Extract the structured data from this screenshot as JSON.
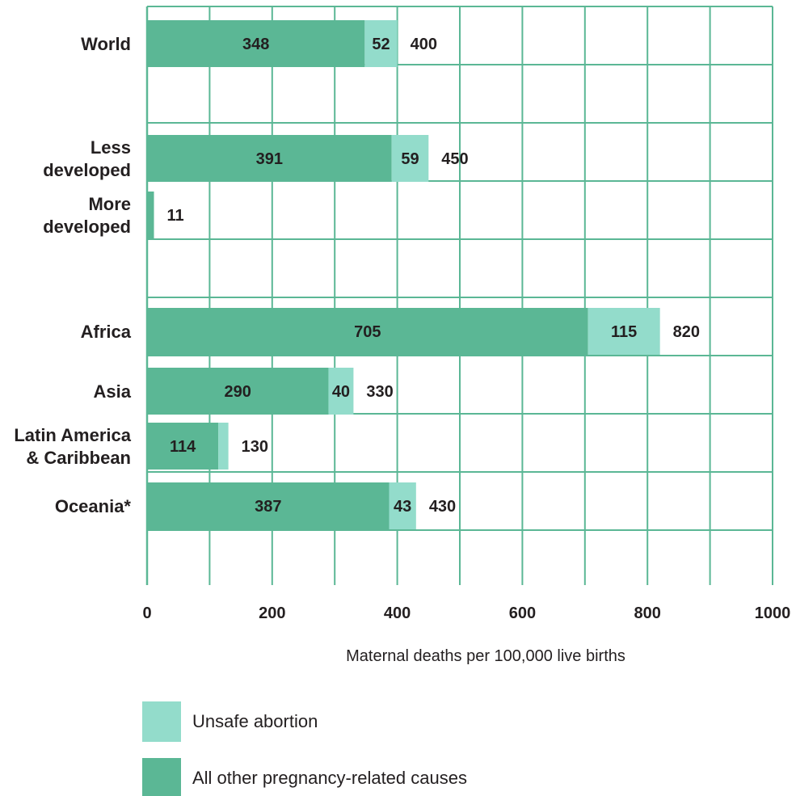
{
  "chart_data": {
    "type": "bar",
    "orientation": "horizontal",
    "stacked": true,
    "categories": [
      "World",
      "Less developed",
      "More developed",
      "Africa",
      "Asia",
      "Latin America & Caribbean",
      "Oceania*"
    ],
    "category_lines": [
      [
        "World"
      ],
      [
        "Less",
        "developed"
      ],
      [
        "More",
        "developed"
      ],
      [
        "Africa"
      ],
      [
        "Asia"
      ],
      [
        "Latin America",
        "& Caribbean"
      ],
      [
        "Oceania*"
      ]
    ],
    "series": [
      {
        "name": "All other pregnancy-related causes",
        "color": "#5bb795",
        "values": [
          348,
          391,
          11,
          705,
          290,
          114,
          387
        ],
        "labels": [
          "348",
          "391",
          "",
          "705",
          "290",
          "114",
          "387"
        ]
      },
      {
        "name": "Unsafe abortion",
        "color": "#93dccb",
        "values": [
          52,
          59,
          0,
          115,
          40,
          16,
          43
        ],
        "labels": [
          "52",
          "59",
          "",
          "115",
          "40",
          "",
          "43"
        ]
      }
    ],
    "totals": [
      400,
      450,
      11,
      820,
      330,
      130,
      430
    ],
    "xlabel": "Maternal deaths per 100,000 live births",
    "xlim": [
      0,
      1000
    ],
    "xticks": [
      0,
      200,
      400,
      600,
      800,
      1000
    ],
    "grid": true,
    "grid_color": "#5bb795",
    "legend_order": [
      "Unsafe abortion",
      "All other pregnancy-related causes"
    ],
    "legend_position": "bottom"
  }
}
